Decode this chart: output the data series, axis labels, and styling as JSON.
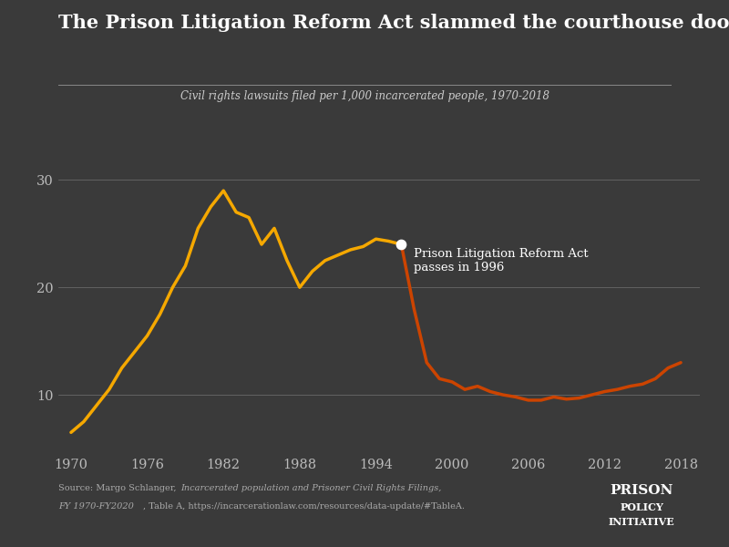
{
  "title": "The Prison Litigation Reform Act slammed the courthouse door",
  "subtitle": "Civil rights lawsuits filed per 1,000 incarcerated people, 1970-2018",
  "bg_color": "#3a3a3a",
  "title_color": "#ffffff",
  "subtitle_color": "#cccccc",
  "gold_color": "#f5a800",
  "orange_color": "#cc4400",
  "annotation_text": "Prison Litigation Reform Act\npasses in 1996",
  "annotation_color": "#ffffff",
  "source_line1": "Source: Margo Schlanger, ",
  "source_italic": "Incarcerated population and Prisoner Civil Rights Filings,",
  "source_line2": "FY 1970-FY2020",
  "source_line2b": ", Table A, https://incarcerationlaw.com/resources/data-update/#TableA.",
  "logo_line1": "PRISON",
  "logo_line2": "POLICY",
  "logo_line3": "INITIATIVE",
  "years": [
    1970,
    1971,
    1972,
    1973,
    1974,
    1975,
    1976,
    1977,
    1978,
    1979,
    1980,
    1981,
    1982,
    1983,
    1984,
    1985,
    1986,
    1987,
    1988,
    1989,
    1990,
    1991,
    1992,
    1993,
    1994,
    1995,
    1996,
    1997,
    1998,
    1999,
    2000,
    2001,
    2002,
    2003,
    2004,
    2005,
    2006,
    2007,
    2008,
    2009,
    2010,
    2011,
    2012,
    2013,
    2014,
    2015,
    2016,
    2017,
    2018
  ],
  "values": [
    6.5,
    7.5,
    9.0,
    10.5,
    12.5,
    14.0,
    15.5,
    17.5,
    20.0,
    22.0,
    25.5,
    27.5,
    29.0,
    27.0,
    26.5,
    24.0,
    25.5,
    22.5,
    20.0,
    21.5,
    22.5,
    23.0,
    23.5,
    23.8,
    24.5,
    24.3,
    24.0,
    18.0,
    13.0,
    11.5,
    11.2,
    10.5,
    10.8,
    10.3,
    10.0,
    9.8,
    9.5,
    9.5,
    9.8,
    9.6,
    9.7,
    10.0,
    10.3,
    10.5,
    10.8,
    11.0,
    11.5,
    12.5,
    13.0
  ],
  "split_year": 1996,
  "split_value": 24.0,
  "yticks": [
    10,
    20,
    30
  ],
  "xticks": [
    1970,
    1976,
    1982,
    1988,
    1994,
    2000,
    2006,
    2012,
    2018
  ],
  "ylim": [
    5,
    33
  ],
  "xlim": [
    1969,
    2019.5
  ]
}
